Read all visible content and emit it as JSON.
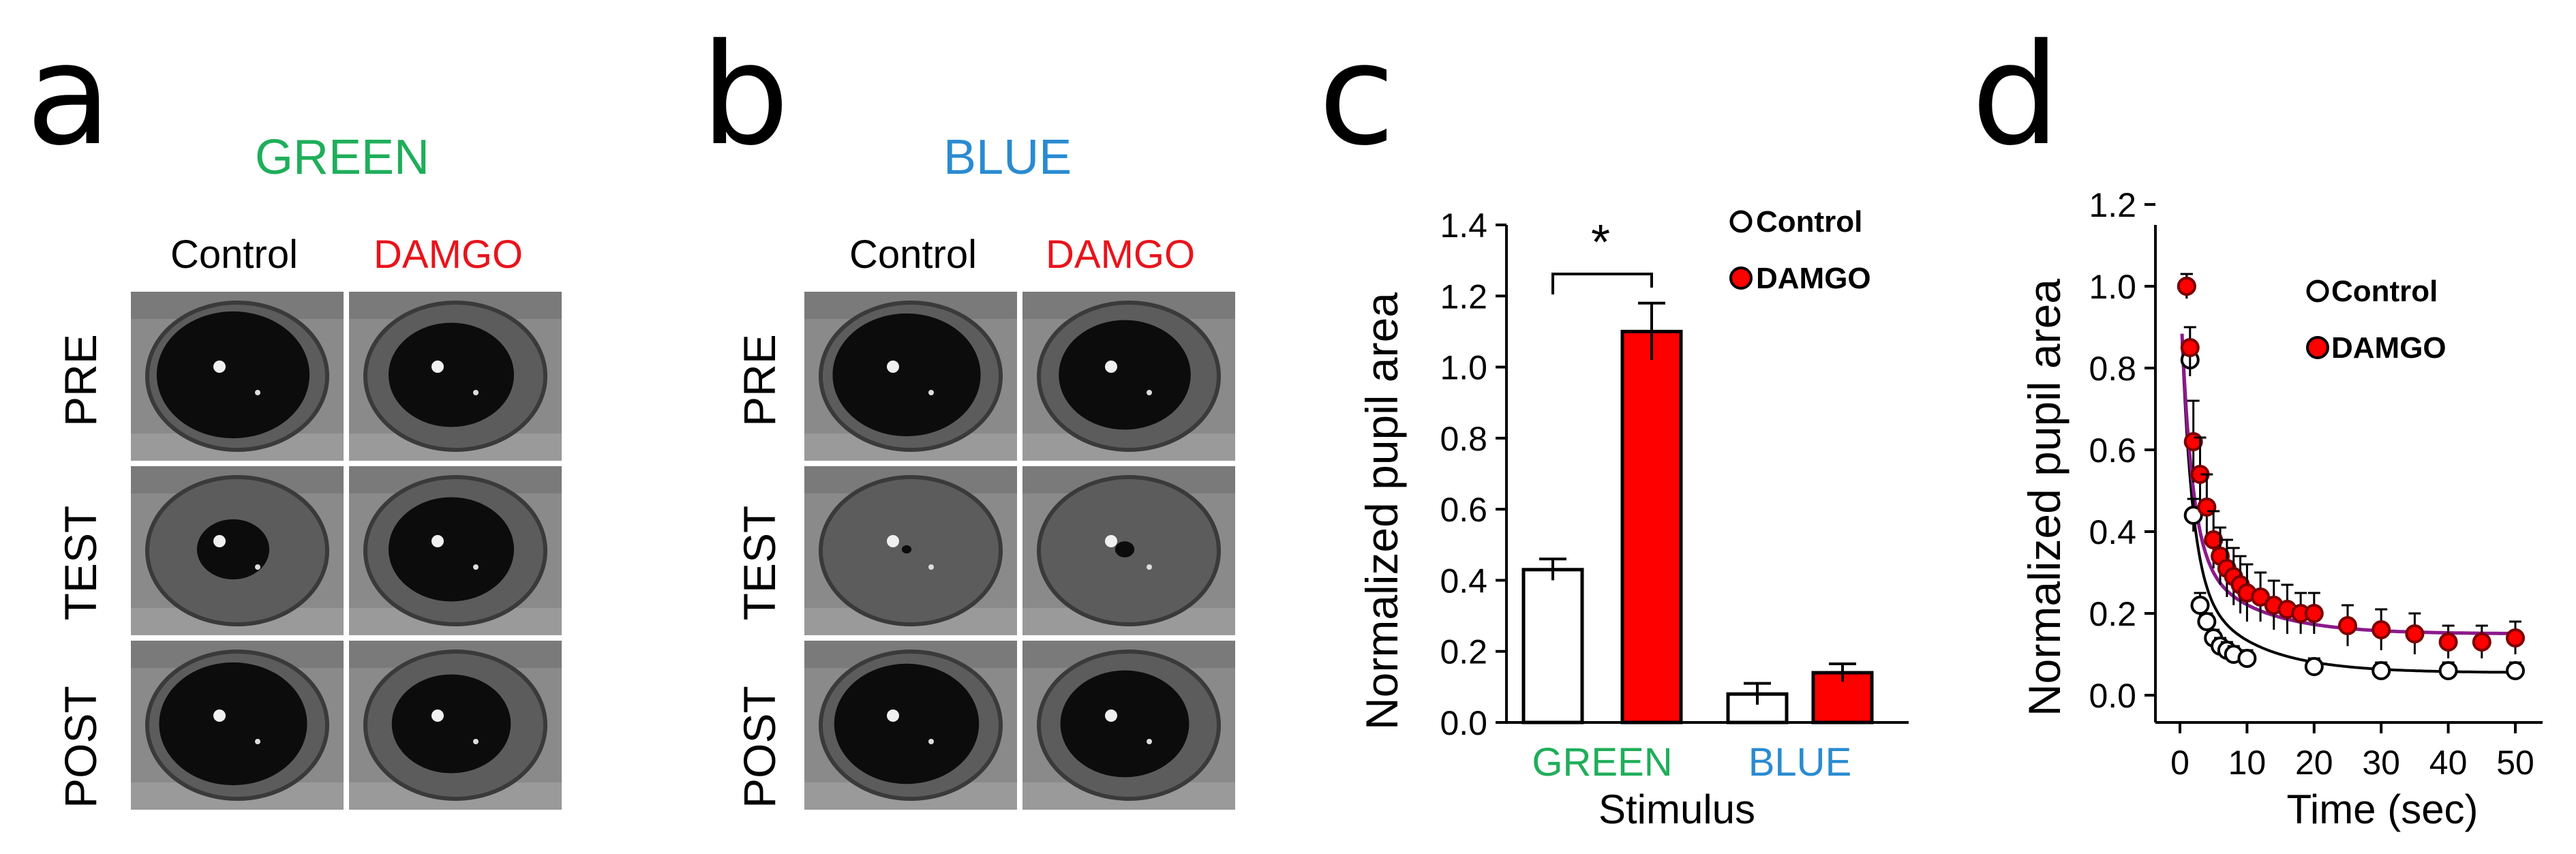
{
  "panels": {
    "a": {
      "letter": "a",
      "title": "GREEN",
      "title_color": "#1fae5a"
    },
    "b": {
      "letter": "b",
      "title": "BLUE",
      "title_color": "#2a8bd1"
    },
    "c": {
      "letter": "c"
    },
    "d": {
      "letter": "d"
    }
  },
  "photos": {
    "columns": [
      {
        "label": "Control",
        "color": "#000000"
      },
      {
        "label": "DAMGO",
        "color": "#e8141c"
      }
    ],
    "rows": [
      "PRE",
      "TEST",
      "POST"
    ],
    "green_pupil_radius": [
      [
        0.95,
        0.78
      ],
      [
        0.45,
        0.78
      ],
      [
        0.92,
        0.74
      ]
    ],
    "blue_pupil_radius": [
      [
        0.92,
        0.82
      ],
      [
        0.06,
        0.12
      ],
      [
        0.9,
        0.8
      ]
    ]
  },
  "chart_data": [
    {
      "type": "bar",
      "panel": "c",
      "xlabel": "Stimulus",
      "ylabel": "Normalized pupil area",
      "ylim": [
        0,
        1.4
      ],
      "yticks": [
        "0.0",
        "0.2",
        "0.4",
        "0.6",
        "0.8",
        "1.0",
        "1.2",
        "1.4"
      ],
      "categories": [
        {
          "label": "GREEN",
          "color": "#1fae5a"
        },
        {
          "label": "BLUE",
          "color": "#2a8bd1"
        }
      ],
      "series": [
        {
          "name": "Control",
          "fill": "#ffffff",
          "values": [
            0.43,
            0.08
          ],
          "errors": [
            0.03,
            0.03
          ]
        },
        {
          "name": "DAMGO",
          "fill": "#ff0000",
          "values": [
            1.1,
            0.14
          ],
          "errors": [
            0.08,
            0.025
          ]
        }
      ],
      "significance": {
        "label": "*",
        "between": "GREEN Control vs GREEN DAMGO"
      },
      "legend": {
        "position": "top-right",
        "entries": [
          "Control",
          "DAMGO"
        ]
      }
    },
    {
      "type": "scatter",
      "panel": "d",
      "xlabel": "Time (sec)",
      "ylabel": "Normalized pupil area",
      "xlim": [
        0,
        50
      ],
      "ylim": [
        0,
        1.2
      ],
      "xticks": [
        "0",
        "10",
        "20",
        "30",
        "40",
        "50"
      ],
      "yticks": [
        "0.0",
        "0.2",
        "0.4",
        "0.6",
        "0.8",
        "1.0",
        "1.2"
      ],
      "fit_color": "#8b1a8b",
      "series": [
        {
          "name": "Control",
          "fill": "#ffffff",
          "x": [
            1,
            1.5,
            2,
            3,
            4,
            5,
            6,
            7,
            8,
            10,
            20,
            30,
            40,
            50
          ],
          "y": [
            1.0,
            0.82,
            0.44,
            0.22,
            0.18,
            0.14,
            0.12,
            0.11,
            0.1,
            0.09,
            0.07,
            0.06,
            0.06,
            0.06
          ],
          "errors": [
            0.03,
            0.04,
            0.04,
            0.03,
            0.02,
            0.02,
            0.02,
            0.02,
            0.02,
            0.02,
            0.02,
            0.02,
            0.02,
            0.02
          ]
        },
        {
          "name": "DAMGO",
          "fill": "#ff0000",
          "x": [
            1,
            1.5,
            2,
            3,
            4,
            5,
            6,
            7,
            8,
            9,
            10,
            12,
            14,
            16,
            18,
            20,
            25,
            30,
            35,
            40,
            45,
            50
          ],
          "y": [
            1.0,
            0.85,
            0.62,
            0.54,
            0.46,
            0.38,
            0.34,
            0.31,
            0.29,
            0.27,
            0.25,
            0.24,
            0.22,
            0.21,
            0.2,
            0.2,
            0.17,
            0.16,
            0.15,
            0.13,
            0.13,
            0.14
          ],
          "errors": [
            0.03,
            0.05,
            0.1,
            0.09,
            0.08,
            0.07,
            0.07,
            0.07,
            0.07,
            0.07,
            0.07,
            0.06,
            0.06,
            0.06,
            0.05,
            0.05,
            0.05,
            0.05,
            0.05,
            0.04,
            0.04,
            0.04
          ]
        }
      ],
      "legend": {
        "position": "top-right",
        "entries": [
          "Control",
          "DAMGO"
        ]
      }
    }
  ]
}
